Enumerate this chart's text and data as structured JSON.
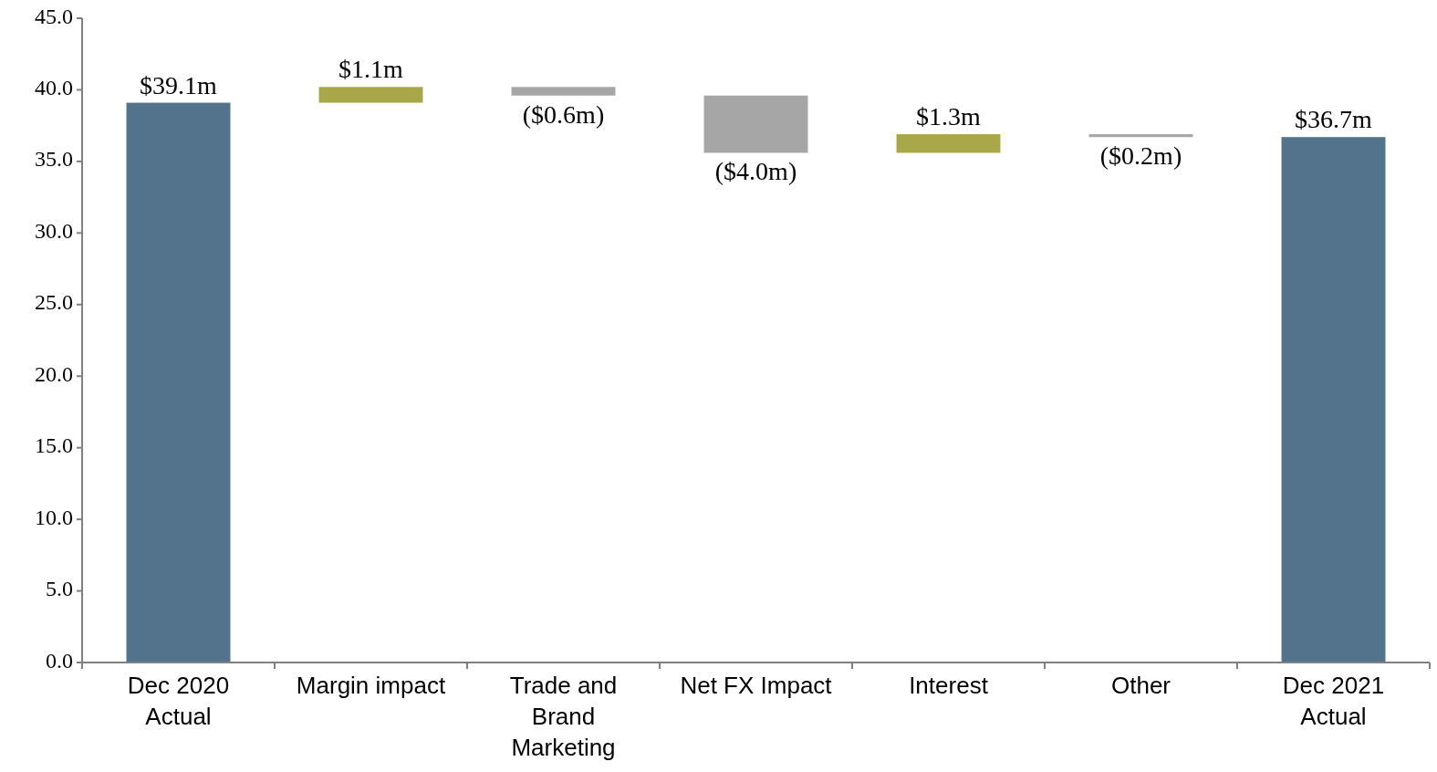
{
  "chart_data": {
    "type": "bar",
    "categories": [
      "Dec 2020 Actual",
      "Margin impact",
      "Trade and Brand Marketing",
      "Net FX Impact",
      "Interest",
      "Other",
      "Dec 2021 Actual"
    ],
    "values": [
      39.1,
      1.1,
      -0.6,
      -4.0,
      1.3,
      -0.2,
      36.7
    ],
    "base": [
      0,
      39.1,
      40.2,
      39.6,
      35.6,
      36.9,
      0
    ],
    "colors": [
      "#52738b",
      "#a8a84a",
      "#a6a6a6",
      "#a6a6a6",
      "#a8a84a",
      "#a6a6a6",
      "#52738b"
    ],
    "value_labels": [
      "$39.1m",
      "$1.1m",
      "($0.6m)",
      "($4.0m)",
      "$1.3m",
      "($0.2m)",
      "$36.7m"
    ],
    "ylim": [
      0,
      45
    ],
    "yticks": [
      {
        "value": 0,
        "label": "0.0"
      },
      {
        "value": 5,
        "label": "5.0"
      },
      {
        "value": 10,
        "label": "10.0"
      },
      {
        "value": 15,
        "label": "15.0"
      },
      {
        "value": 20,
        "label": "20.0"
      },
      {
        "value": 25,
        "label": "25.0"
      },
      {
        "value": 30,
        "label": "30.0"
      },
      {
        "value": 35,
        "label": "35.0"
      },
      {
        "value": 40,
        "label": "40.0"
      },
      {
        "value": 45,
        "label": "45.0"
      }
    ],
    "grid": false
  }
}
